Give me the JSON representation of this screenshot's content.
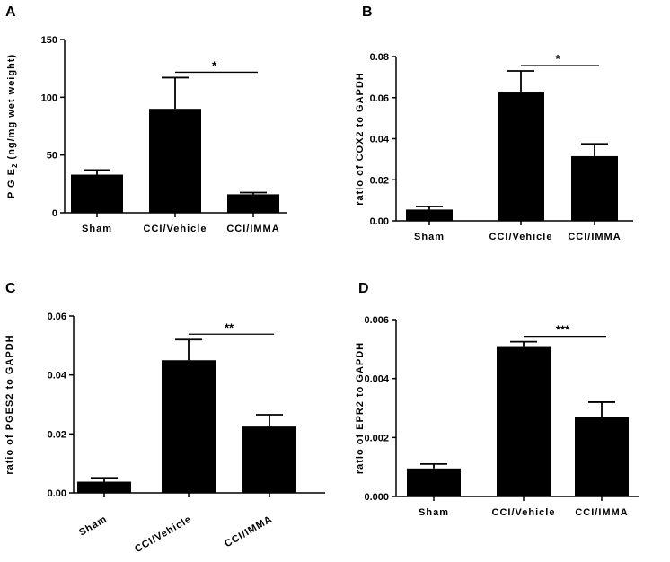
{
  "chart_data": [
    {
      "panel": "A",
      "type": "bar",
      "categories": [
        "Sham",
        "CCI/Vehicle",
        "CCI/IMMA"
      ],
      "values": [
        33,
        90,
        16
      ],
      "errors": [
        4,
        27,
        1.5
      ],
      "ylim": [
        0,
        150
      ],
      "yticks": [
        "0",
        "50",
        "100",
        "150"
      ],
      "ylabel_main": "P G E",
      "ylabel_sub": "2",
      "ylabel_rest": " (ng/mg wet weight)",
      "significance": {
        "from": "CCI/Vehicle",
        "to": "CCI/IMMA",
        "label": "*"
      }
    },
    {
      "panel": "B",
      "type": "bar",
      "categories": [
        "Sham",
        "CCI/Vehicle",
        "CCI/IMMA"
      ],
      "values": [
        0.0055,
        0.0625,
        0.0315
      ],
      "errors": [
        0.0015,
        0.0105,
        0.006
      ],
      "ylim": [
        0,
        0.08
      ],
      "yticks": [
        "0.00",
        "0.02",
        "0.04",
        "0.06",
        "0.08"
      ],
      "ylabel": "ratio of COX2 to GAPDH",
      "significance": {
        "from": "CCI/Vehicle",
        "to": "CCI/IMMA",
        "label": "*"
      }
    },
    {
      "panel": "C",
      "type": "bar",
      "categories": [
        "Sham",
        "CCI/Vehicle",
        "CCI/IMMA"
      ],
      "values": [
        0.0038,
        0.045,
        0.0225
      ],
      "errors": [
        0.0013,
        0.007,
        0.004
      ],
      "ylim": [
        0,
        0.06
      ],
      "yticks": [
        "0.00",
        "0.02",
        "0.04",
        "0.06"
      ],
      "ylabel": "ratio of PGES2 to GAPDH",
      "significance": {
        "from": "CCI/Vehicle",
        "to": "CCI/IMMA",
        "label": "**"
      }
    },
    {
      "panel": "D",
      "type": "bar",
      "categories": [
        "Sham",
        "CCI/Vehicle",
        "CCI/IMMA"
      ],
      "values": [
        0.00095,
        0.0051,
        0.0027
      ],
      "errors": [
        0.00015,
        0.00015,
        0.0005
      ],
      "ylim": [
        0,
        0.006
      ],
      "yticks": [
        "0.000",
        "0.002",
        "0.004",
        "0.006"
      ],
      "ylabel": "ratio of EPR2 to GAPDH",
      "significance": {
        "from": "CCI/Vehicle",
        "to": "CCI/IMMA",
        "label": "***"
      }
    }
  ]
}
